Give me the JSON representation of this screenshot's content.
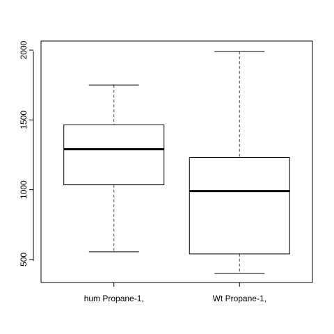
{
  "chart_data": {
    "type": "boxplot",
    "categories": [
      "hum Propane-1,",
      "Wt Propane-1,"
    ],
    "boxes": [
      {
        "whisker_low": 555,
        "q1": 1035,
        "median": 1290,
        "q3": 1465,
        "whisker_high": 1750
      },
      {
        "whisker_low": 400,
        "q1": 540,
        "median": 990,
        "q3": 1230,
        "whisker_high": 1990
      }
    ],
    "yticks": [
      {
        "value": 500,
        "label": "500"
      },
      {
        "value": 1000,
        "label": "1000"
      },
      {
        "value": 1500,
        "label": "1500"
      },
      {
        "value": 2000,
        "label": "2000"
      }
    ],
    "ylim": [
      335,
      2065
    ],
    "title": "",
    "xlabel": "",
    "ylabel": "",
    "grid": false,
    "colors": {
      "box_fill": "#ffffff",
      "box_stroke": "#000000",
      "median": "#000000",
      "whisker": "#444444"
    }
  }
}
